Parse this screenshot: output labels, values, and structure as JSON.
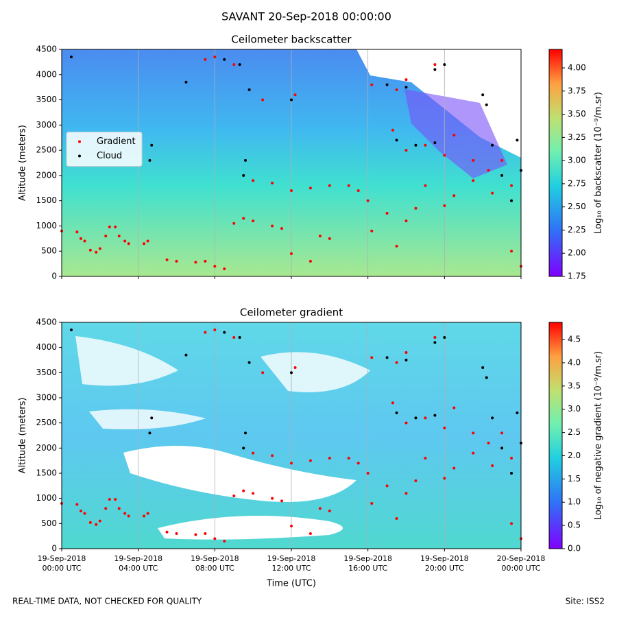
{
  "suptitle": "SAVANT 20-Sep-2018 00:00:00",
  "footer_left": "REAL-TIME DATA, NOT CHECKED FOR QUALITY",
  "footer_right": "Site: ISS2",
  "chart_data": [
    {
      "type": "scatter",
      "title": "Ceilometer backscatter",
      "ylabel": "Altitude (meters)",
      "colorbar_label": "Log₁₀ of backscatter (10⁻⁹/m.sr)",
      "xlim": [
        0,
        24
      ],
      "xticks": [
        0,
        4,
        8,
        12,
        16,
        20,
        24
      ],
      "ylim": [
        0,
        4500
      ],
      "yticks": [
        0,
        500,
        1000,
        1500,
        2000,
        2500,
        3000,
        3500,
        4000,
        4500
      ],
      "clim": [
        1.75,
        4.2
      ],
      "cticks": [
        1.75,
        {
          "value": 2,
          "label": "2.00"
        },
        2.25,
        {
          "value": 2.5,
          "label": "2.50"
        },
        2.75,
        {
          "value": 3,
          "label": "3.00"
        },
        3.25,
        {
          "value": 3.5,
          "label": "3.50"
        },
        3.75,
        {
          "value": 4,
          "label": "4.00"
        }
      ],
      "grid": "x",
      "legend": "center left",
      "series": [
        {
          "name": "Gradient",
          "color": "#ff0000",
          "x": [
            0,
            0.8,
            1,
            1.2,
            1.5,
            1.8,
            2,
            2.3,
            2.5,
            2.8,
            3,
            3.3,
            3.5,
            4.3,
            4.5,
            5.5,
            6,
            7,
            7.5,
            8,
            8.5,
            9,
            9.5,
            10,
            11,
            11.5,
            12,
            13,
            13.5,
            14,
            15.5,
            16,
            16.2,
            17,
            17.5,
            18,
            18.5,
            19,
            20,
            20.5,
            21.5,
            22.5,
            23.5,
            24,
            10,
            11,
            12,
            13,
            14,
            15,
            7.5,
            8,
            9,
            10.5,
            12.2,
            16.2,
            17.5,
            18,
            19.5,
            17.3,
            18,
            19,
            20,
            20.5,
            21.5,
            22.3,
            23,
            23.5
          ],
          "values": [
            900,
            880,
            750,
            700,
            520,
            480,
            550,
            800,
            980,
            980,
            800,
            700,
            650,
            650,
            700,
            330,
            300,
            280,
            300,
            200,
            150,
            1050,
            1150,
            1100,
            1000,
            950,
            450,
            300,
            800,
            750,
            1700,
            1500,
            900,
            1250,
            600,
            1100,
            1350,
            1800,
            1400,
            1600,
            1900,
            1650,
            500,
            200,
            1900,
            1850,
            1700,
            1750,
            1800,
            1800,
            4300,
            4350,
            4200,
            3500,
            3600,
            3800,
            3700,
            3900,
            4200,
            2900,
            2500,
            2600,
            2400,
            2800,
            2300,
            2100,
            2300,
            1800
          ]
        },
        {
          "name": "Cloud",
          "color": "#000000",
          "x": [
            0.5,
            4.6,
            4.7,
            6.5,
            8.5,
            9.3,
            9.8,
            9.5,
            9.6,
            12,
            17,
            18,
            19.5,
            20,
            17.5,
            18.5,
            19.5,
            22,
            22.2,
            22.5,
            23,
            23.5,
            23.8,
            24
          ],
          "values": [
            4350,
            2300,
            2600,
            3850,
            4300,
            4200,
            3700,
            2000,
            2300,
            3500,
            3800,
            3750,
            4100,
            4200,
            2700,
            2600,
            2650,
            3600,
            3400,
            2600,
            2000,
            1500,
            2700,
            2100
          ]
        }
      ]
    },
    {
      "type": "scatter",
      "title": "Ceilometer gradient",
      "ylabel": "Altitude (meters)",
      "xlabel": "Time (UTC)",
      "colorbar_label": "Log₁₀ of negative gradient (10⁻⁹/m.sr)",
      "xlim": [
        0,
        24
      ],
      "xticks": [
        {
          "value": 0,
          "label": [
            "19-Sep-2018",
            "00:00 UTC"
          ]
        },
        {
          "value": 4,
          "label": [
            "19-Sep-2018",
            "04:00 UTC"
          ]
        },
        {
          "value": 8,
          "label": [
            "19-Sep-2018",
            "08:00 UTC"
          ]
        },
        {
          "value": 12,
          "label": [
            "19-Sep-2018",
            "12:00 UTC"
          ]
        },
        {
          "value": 16,
          "label": [
            "19-Sep-2018",
            "16:00 UTC"
          ]
        },
        {
          "value": 20,
          "label": [
            "19-Sep-2018",
            "20:00 UTC"
          ]
        },
        {
          "value": 24,
          "label": [
            "20-Sep-2018",
            "00:00 UTC"
          ]
        }
      ],
      "ylim": [
        0,
        4500
      ],
      "yticks": [
        0,
        500,
        1000,
        1500,
        2000,
        2500,
        3000,
        3500,
        4000,
        4500
      ],
      "clim": [
        0,
        4.87
      ],
      "cticks": [
        {
          "value": 0,
          "label": "0.0"
        },
        0.5,
        {
          "value": 1,
          "label": "1.0"
        },
        1.5,
        {
          "value": 2,
          "label": "2.0"
        },
        2.5,
        {
          "value": 3,
          "label": "3.0"
        },
        3.5,
        {
          "value": 4,
          "label": "4.0"
        },
        4.5
      ],
      "grid": "x",
      "series": [
        {
          "color": "#ff0000",
          "x": [
            0,
            0.8,
            1,
            1.2,
            1.5,
            1.8,
            2,
            2.3,
            2.5,
            2.8,
            3,
            3.3,
            3.5,
            4.3,
            4.5,
            5.5,
            6,
            7,
            7.5,
            8,
            8.5,
            9,
            9.5,
            10,
            11,
            11.5,
            12,
            13,
            13.5,
            14,
            15.5,
            16,
            16.2,
            17,
            17.5,
            18,
            18.5,
            19,
            20,
            20.5,
            21.5,
            22.5,
            23.5,
            24,
            10,
            11,
            12,
            13,
            14,
            15,
            7.5,
            8,
            9,
            10.5,
            12.2,
            16.2,
            17.5,
            18,
            19.5,
            17.3,
            18,
            19,
            20,
            20.5,
            21.5,
            22.3,
            23,
            23.5
          ],
          "values": [
            900,
            880,
            750,
            700,
            520,
            480,
            550,
            800,
            980,
            980,
            800,
            700,
            650,
            650,
            700,
            330,
            300,
            280,
            300,
            200,
            150,
            1050,
            1150,
            1100,
            1000,
            950,
            450,
            300,
            800,
            750,
            1700,
            1500,
            900,
            1250,
            600,
            1100,
            1350,
            1800,
            1400,
            1600,
            1900,
            1650,
            500,
            200,
            1900,
            1850,
            1700,
            1750,
            1800,
            1800,
            4300,
            4350,
            4200,
            3500,
            3600,
            3800,
            3700,
            3900,
            4200,
            2900,
            2500,
            2600,
            2400,
            2800,
            2300,
            2100,
            2300,
            1800
          ]
        },
        {
          "color": "#000000",
          "x": [
            0.5,
            4.6,
            4.7,
            6.5,
            8.5,
            9.3,
            9.8,
            9.5,
            9.6,
            12,
            17,
            18,
            19.5,
            20,
            17.5,
            18.5,
            19.5,
            22,
            22.2,
            22.5,
            23,
            23.5,
            23.8,
            24
          ],
          "values": [
            4350,
            2300,
            2600,
            3850,
            4300,
            4200,
            3700,
            2000,
            2300,
            3500,
            3800,
            3750,
            4100,
            4200,
            2700,
            2600,
            2650,
            3600,
            3400,
            2600,
            2000,
            1500,
            2700,
            2100
          ]
        }
      ]
    }
  ]
}
